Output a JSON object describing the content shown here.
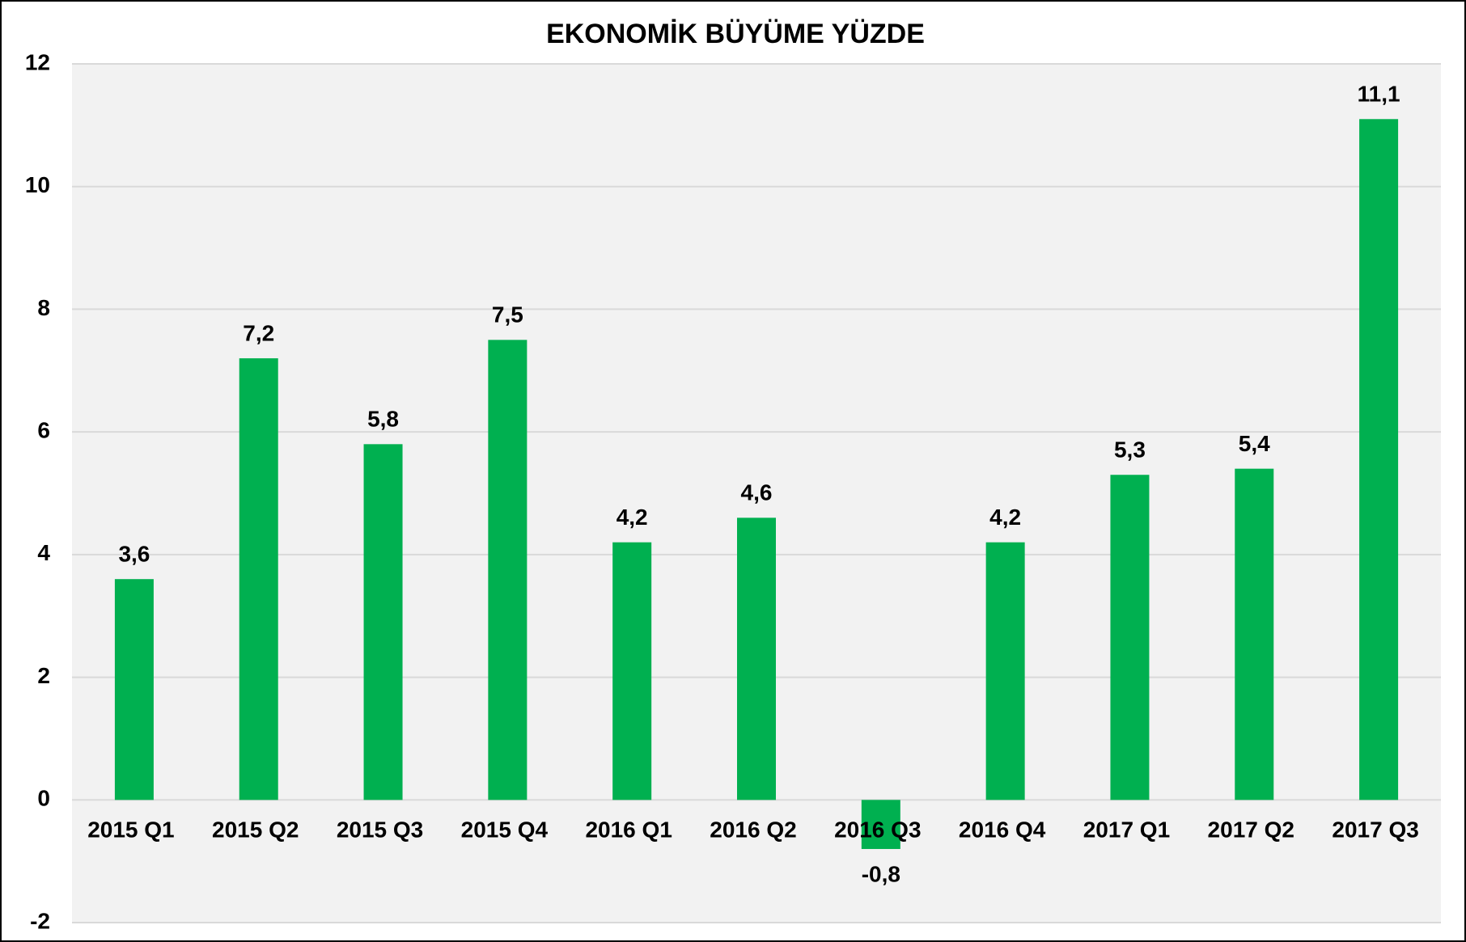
{
  "chart_data": {
    "type": "bar",
    "title": "EKONOMİK BÜYÜME YÜZDE",
    "categories": [
      "2015 Q1",
      "2015 Q2",
      "2015 Q3",
      "2015 Q4",
      "2016 Q1",
      "2016 Q2",
      "2016 Q3",
      "2016 Q4",
      "2017 Q1",
      "2017 Q2",
      "2017 Q3"
    ],
    "values": [
      3.6,
      7.2,
      5.8,
      7.5,
      4.2,
      4.6,
      -0.8,
      4.2,
      5.3,
      5.4,
      11.1
    ],
    "value_labels": [
      "3,6",
      "7,2",
      "5,8",
      "7,5",
      "4,2",
      "4,6",
      "-0,8",
      "4,2",
      "5,3",
      "5,4",
      "11,1"
    ],
    "color": "#00b050",
    "ylim": [
      -2,
      12
    ],
    "yticks": [
      -2,
      0,
      2,
      4,
      6,
      8,
      10,
      12
    ],
    "grid": true
  }
}
